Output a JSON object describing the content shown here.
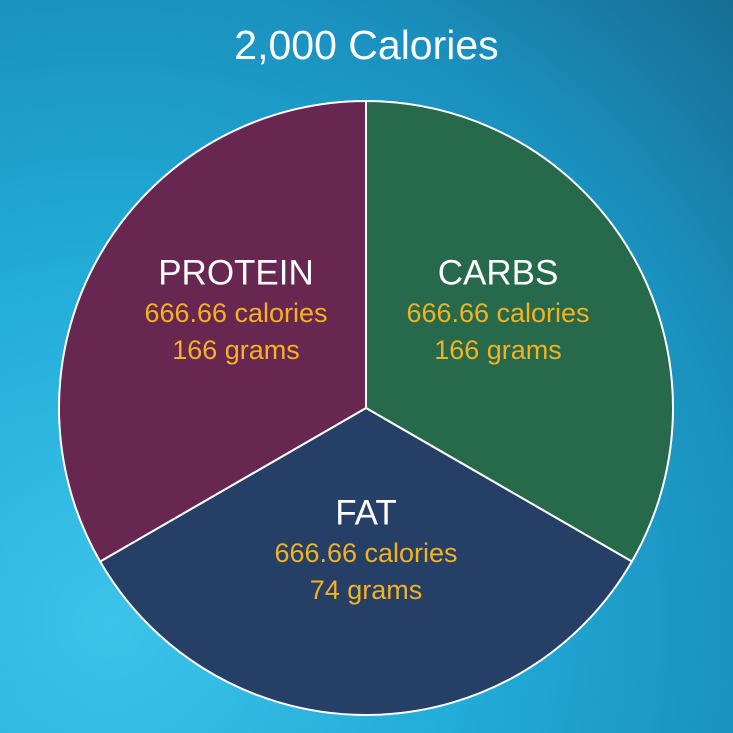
{
  "chart_data": {
    "type": "pie",
    "title": "2,000 Calories",
    "slices": [
      {
        "label": "CARBS",
        "calories": "666.66 calories",
        "grams": "166 grams",
        "value": 666.66,
        "color": "#27694b"
      },
      {
        "label": "FAT",
        "calories": "666.66 calories",
        "grams": "74 grams",
        "value": 666.66,
        "color": "#263f66"
      },
      {
        "label": "PROTEIN",
        "calories": "666.66 calories",
        "grams": "166 grams",
        "value": 666.66,
        "color": "#682751"
      }
    ],
    "label_color": "#ffffff",
    "value_color": "#f4b21f"
  }
}
